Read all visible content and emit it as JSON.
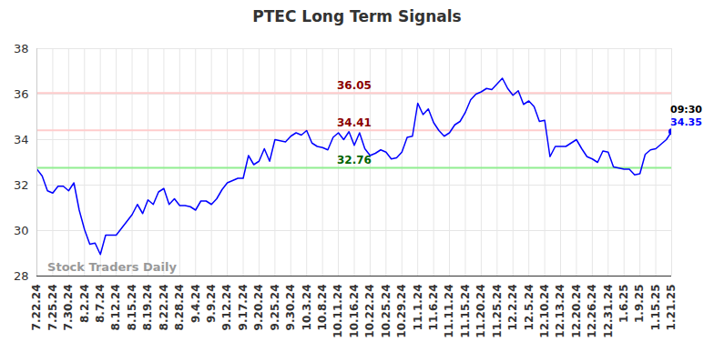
{
  "chart_data": {
    "type": "line",
    "title": "PTEC Long Term Signals",
    "categories": [
      "7.22.24",
      null,
      null,
      "7.25.24",
      null,
      null,
      "7.30.24",
      null,
      null,
      "8.2.24",
      null,
      null,
      "8.7.24",
      null,
      null,
      "8.12.24",
      null,
      null,
      "8.15.24",
      null,
      null,
      "8.19.24",
      null,
      null,
      "8.22.24",
      null,
      null,
      "8.28.24",
      null,
      null,
      "9.4.24",
      null,
      null,
      "9.9.24",
      null,
      null,
      "9.12.24",
      null,
      null,
      "9.17.24",
      null,
      null,
      "9.20.24",
      null,
      null,
      "9.25.24",
      null,
      null,
      "9.30.24",
      null,
      null,
      "10.3.24",
      null,
      null,
      "10.8.24",
      null,
      null,
      "10.11.24",
      null,
      null,
      "10.16.24",
      null,
      null,
      "10.22.24",
      null,
      null,
      "10.25.24",
      null,
      null,
      "10.29.24",
      null,
      null,
      "11.1.24",
      null,
      null,
      "11.6.24",
      null,
      null,
      "11.11.24",
      null,
      null,
      "11.15.24",
      null,
      null,
      "11.20.24",
      null,
      null,
      "11.25.24",
      null,
      null,
      "12.2.24",
      null,
      null,
      "12.5.24",
      null,
      null,
      "12.10.24",
      null,
      null,
      "12.13.24",
      null,
      null,
      "12.20.24",
      null,
      null,
      "12.26.24",
      null,
      null,
      "12.31.24",
      null,
      null,
      "1.6.25",
      null,
      null,
      "1.9.25",
      null,
      null,
      "1.15.25",
      null,
      null,
      "1.21.25"
    ],
    "values": [
      32.7,
      32.4,
      31.75,
      31.65,
      31.95,
      31.95,
      31.75,
      32.1,
      30.9,
      30.05,
      29.4,
      29.45,
      28.95,
      29.8,
      29.8,
      29.8,
      30.1,
      30.4,
      30.7,
      31.15,
      30.75,
      31.35,
      31.15,
      31.7,
      31.85,
      31.15,
      31.4,
      31.1,
      31.1,
      31.05,
      30.9,
      31.3,
      31.3,
      31.15,
      31.4,
      31.8,
      32.1,
      32.2,
      32.3,
      32.3,
      33.3,
      32.9,
      33.05,
      33.6,
      33.05,
      34.0,
      33.95,
      33.9,
      34.15,
      34.3,
      34.2,
      34.4,
      33.85,
      33.7,
      33.65,
      33.55,
      34.1,
      34.3,
      34.0,
      34.35,
      33.75,
      34.3,
      33.6,
      33.3,
      33.4,
      33.55,
      33.45,
      33.15,
      33.2,
      33.45,
      34.1,
      34.15,
      35.6,
      35.1,
      35.35,
      34.75,
      34.4,
      34.15,
      34.3,
      34.65,
      34.8,
      35.2,
      35.75,
      36.0,
      36.1,
      36.25,
      36.2,
      36.45,
      36.7,
      36.25,
      35.95,
      36.15,
      35.55,
      35.7,
      35.45,
      34.8,
      34.85,
      33.25,
      33.7,
      33.7,
      33.7,
      33.85,
      34.0,
      33.6,
      33.25,
      33.15,
      33.0,
      33.5,
      33.45,
      32.8,
      32.75,
      32.7,
      32.7,
      32.45,
      32.5,
      33.35,
      33.55,
      33.6,
      33.8,
      34.0,
      34.35
    ],
    "color": "#0000ff",
    "marker": "circle",
    "ylim": [
      28,
      38
    ],
    "yticks": [
      28,
      30,
      32,
      34,
      36,
      38
    ],
    "grid": true,
    "levels": [
      {
        "value": 36.05,
        "label": "36.05",
        "color": "#ffcccc",
        "label_color": "#8b0000"
      },
      {
        "value": 34.41,
        "label": "34.41",
        "color": "#ffcccc",
        "label_color": "#8b0000"
      },
      {
        "value": 32.76,
        "label": "32.76",
        "color": "#90ee90",
        "label_color": "#006400"
      }
    ],
    "last_time": "09:30",
    "last_value_label": "34.35",
    "watermark": "Stock Traders Daily"
  }
}
